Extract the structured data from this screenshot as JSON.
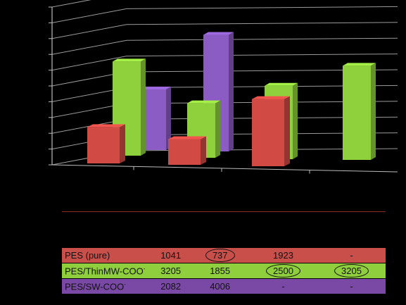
{
  "chart_data": {
    "type": "bar",
    "categories": [
      "",
      "",
      "",
      ""
    ],
    "ylim": [
      0,
      5000
    ],
    "yticks": [
      0,
      500,
      1000,
      1500,
      2000,
      2500,
      3000,
      3500,
      4000,
      4500,
      5000
    ],
    "grid": true,
    "series": [
      {
        "name": "PES (pure)",
        "color": "#d24a44",
        "values": [
          1041,
          737,
          1923,
          null
        ],
        "display": [
          "1041",
          "737",
          "1923",
          "-"
        ],
        "circled": [
          false,
          true,
          false,
          false
        ]
      },
      {
        "name": "PES/ThinMW-COO",
        "sup": "-",
        "color": "#8fd13d",
        "values": [
          3205,
          1855,
          2500,
          3205
        ],
        "display": [
          "3205",
          "1855",
          "2500",
          "3205"
        ],
        "circled": [
          false,
          false,
          true,
          true
        ]
      },
      {
        "name": "PES/SW-COO",
        "sup": "-",
        "color": "#8a5cc4",
        "values": [
          2082,
          4006,
          null,
          null
        ],
        "display": [
          "2082",
          "4006",
          "-",
          "-"
        ],
        "circled": [
          false,
          false,
          false,
          false
        ]
      }
    ]
  }
}
